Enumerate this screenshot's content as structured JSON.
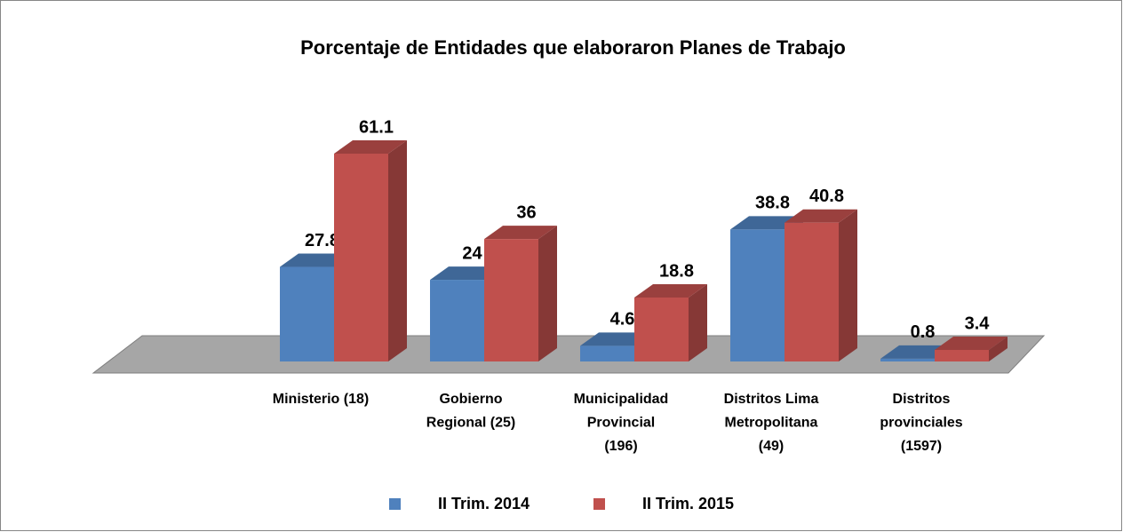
{
  "chart_data": {
    "type": "bar3d",
    "title": "Porcentaje de Entidades que elaboraron Planes de Trabajo",
    "categories": [
      "Ministerio (18)",
      "Gobierno Regional (25)",
      "Municipalidad Provincial (196)",
      "Distritos Lima Metropolitana (49)",
      "Distritos provinciales (1597)"
    ],
    "series": [
      {
        "name": "II Trim. 2014",
        "color": "#4f81bd",
        "values": [
          27.8,
          24,
          4.6,
          38.8,
          0.8
        ]
      },
      {
        "name": "II Trim. 2015",
        "color": "#c0504d",
        "values": [
          61.1,
          36,
          18.8,
          40.8,
          3.4
        ]
      }
    ],
    "legend": "bottom"
  }
}
